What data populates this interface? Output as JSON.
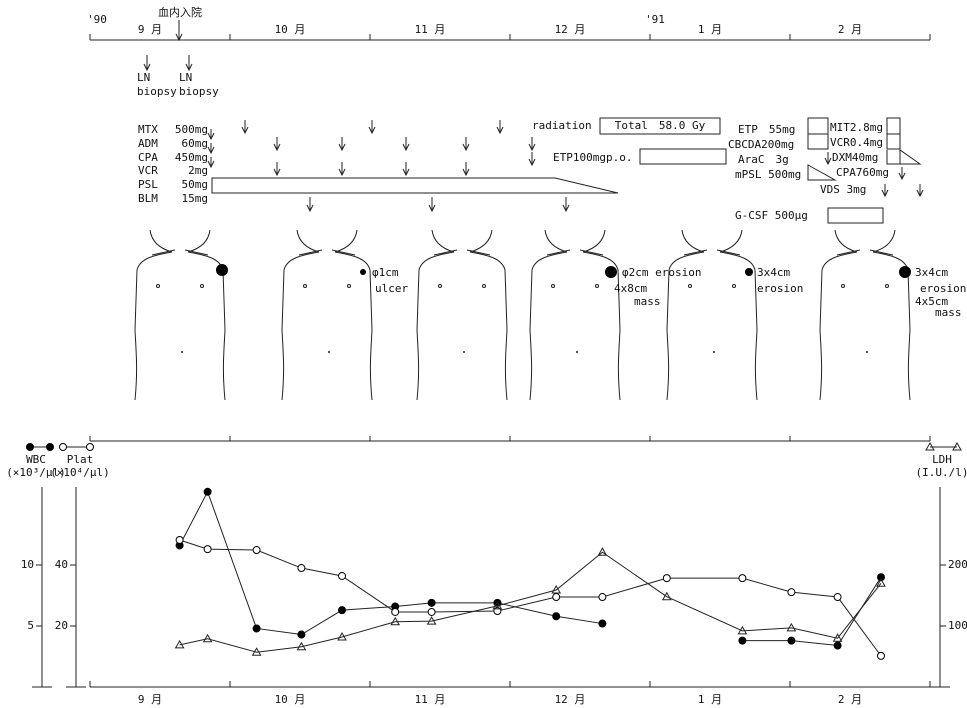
{
  "timeline": {
    "years": [
      "'90",
      "'91"
    ],
    "admission": "血内入院",
    "biopsy": [
      [
        "LN",
        "biopsy"
      ],
      [
        "LN",
        "biopsy"
      ]
    ],
    "drugs": [
      [
        "MTX",
        "500mg"
      ],
      [
        "ADM",
        "60mg"
      ],
      [
        "CPA",
        "450mg"
      ],
      [
        "VCR",
        "2mg"
      ],
      [
        "PSL",
        "50mg"
      ],
      [
        "BLM",
        "15mg"
      ]
    ],
    "radiation": "radiation",
    "radiation_total": "Total　58.0 Gy",
    "etp_oral": "ETP100mgp.o.",
    "regimen2": [
      "ETP　55mg",
      "CBCDA200mg",
      "AraC　3g",
      "mPSL 500mg"
    ],
    "regimen3": [
      "MIT2.8mg",
      "VCR0.4mg",
      "DXM40mg",
      "CPA760mg",
      "VDS 3mg"
    ],
    "gcsf": "G-CSF 500μg",
    "lesions": [
      [
        "φ1cm",
        "ulcer"
      ],
      [
        "φ2cm erosion",
        "4x8cm",
        "mass"
      ],
      [
        "3x4cm",
        "erosion"
      ],
      [
        "3x4cm",
        "erosion",
        "4x5cm",
        "mass"
      ]
    ]
  },
  "chart_data": {
    "type": "line",
    "x": [
      0.64,
      0.84,
      1.19,
      1.51,
      1.8,
      2.18,
      2.44,
      2.91,
      3.33,
      3.66,
      4.12,
      4.66,
      5.01,
      5.34,
      5.65
    ],
    "xlim": [
      0,
      6
    ],
    "xticks": [
      {
        "value": 0.5,
        "label": "9 月"
      },
      {
        "value": 1.5,
        "label": "10 月"
      },
      {
        "value": 2.5,
        "label": "11 月"
      },
      {
        "value": 3.5,
        "label": "12 月"
      },
      {
        "value": 4.5,
        "label": "1 月"
      },
      {
        "value": 5.5,
        "label": "2 月"
      }
    ],
    "xminorticks": [
      0,
      1,
      2,
      3,
      4,
      5,
      6
    ],
    "ylim": [
      0,
      20
    ],
    "yticks": [
      5,
      10
    ],
    "y3lim": [
      0,
      80
    ],
    "y3ticks": [
      20,
      40
    ],
    "y2lim": [
      0,
      400
    ],
    "y2ticks": [
      100,
      200
    ],
    "series": [
      {
        "name": "WBC",
        "unit": "(×10³/μl)",
        "axis": "y",
        "marker": "filled",
        "color": "#000000",
        "values": [
          11.6,
          16.0,
          4.8,
          4.3,
          6.3,
          6.6,
          6.9,
          6.9,
          5.8,
          5.2,
          null,
          3.8,
          3.8,
          3.4,
          9.0
        ]
      },
      {
        "name": "Plat",
        "unit": "(×10⁴/μl)",
        "axis": "y3",
        "marker": "open",
        "color": "#000000",
        "values": [
          48.2,
          45.2,
          44.9,
          39.0,
          36.4,
          24.6,
          24.6,
          24.9,
          29.5,
          29.5,
          35.7,
          35.7,
          31.1,
          29.5,
          10.2
        ]
      },
      {
        "name": "LDH",
        "unit": "(I.U./l)",
        "axis": "y2",
        "marker": "triangle",
        "color": "#000000",
        "values": [
          69,
          79,
          57,
          66,
          82,
          107,
          108,
          133,
          159,
          221,
          148,
          92,
          97,
          80,
          170
        ]
      }
    ]
  }
}
